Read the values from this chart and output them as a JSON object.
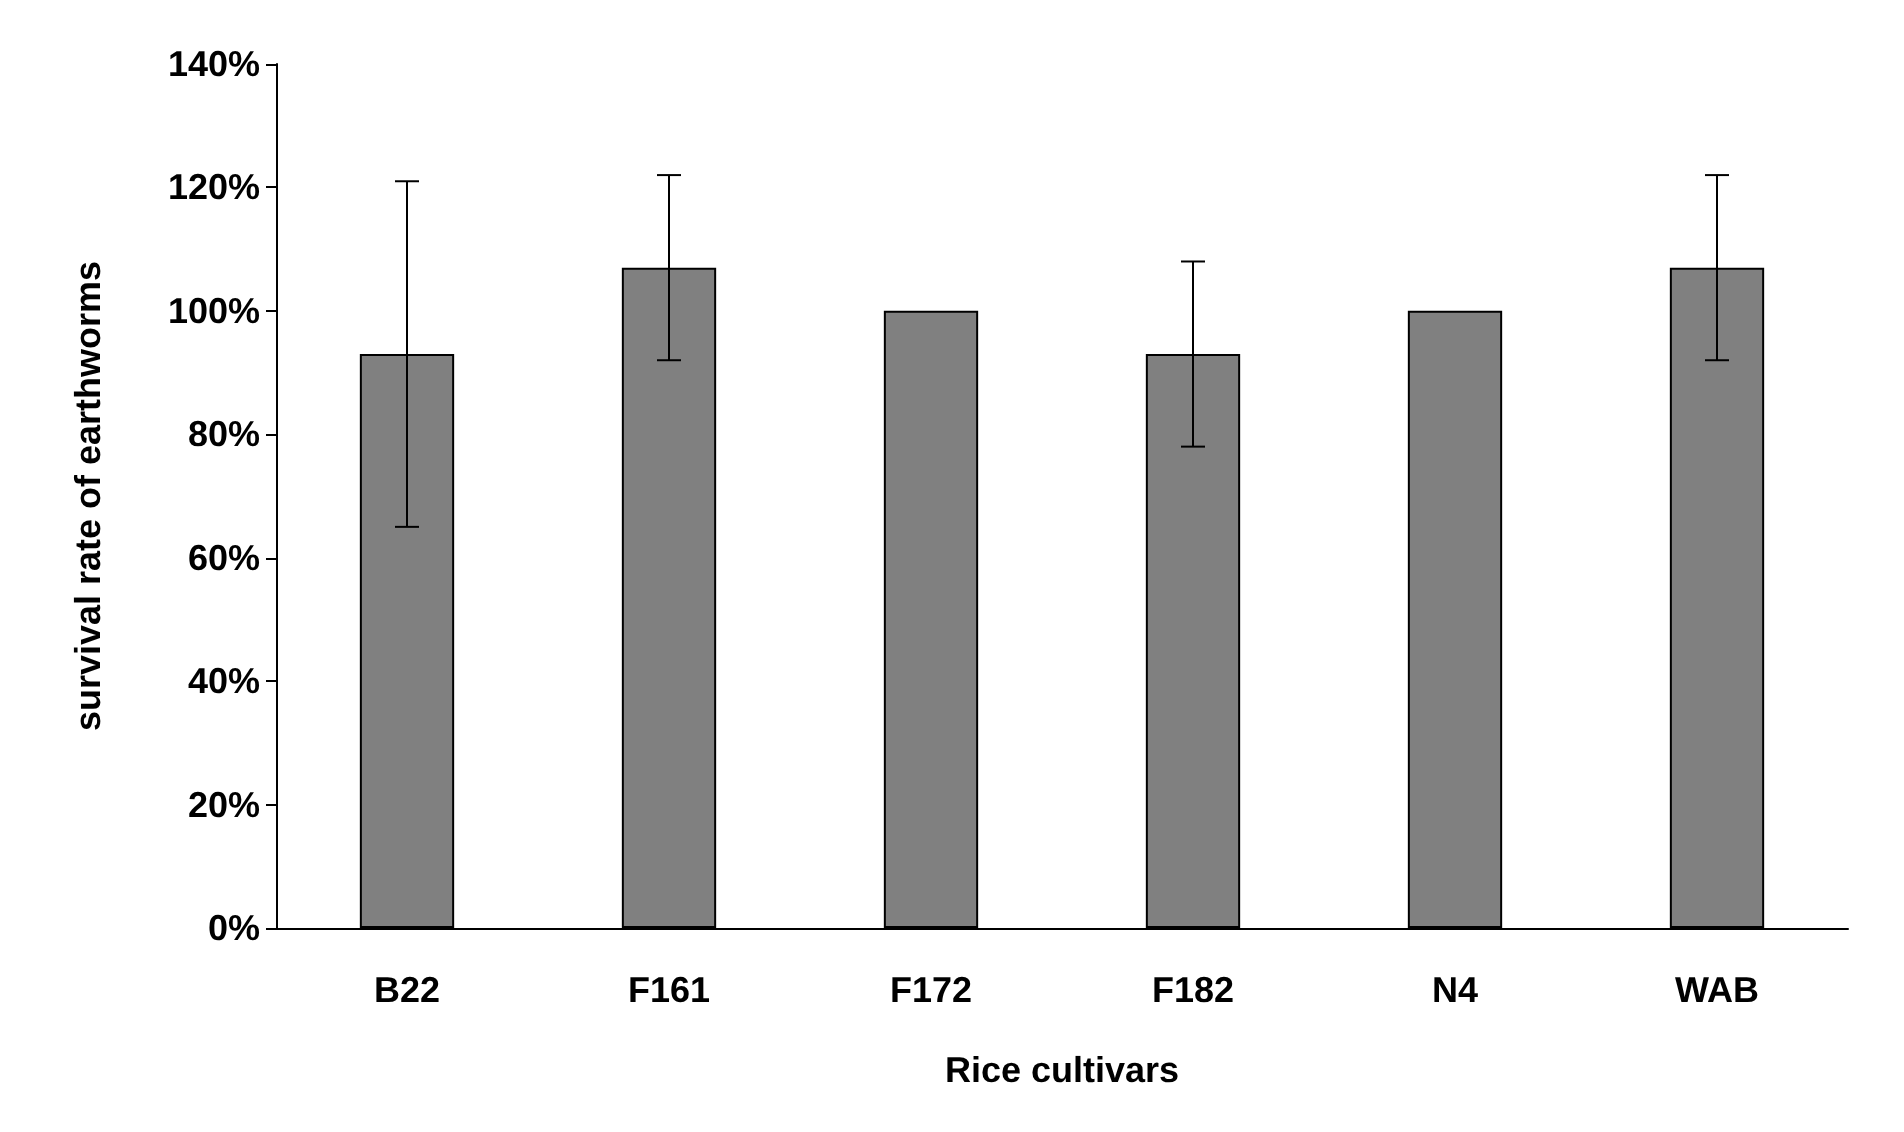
{
  "chart_data": {
    "type": "bar",
    "xlabel": "Rice cultivars",
    "ylabel": "survival rate of earthworms",
    "categories": [
      "B22",
      "F161",
      "F172",
      "F182",
      "N4",
      "WAB"
    ],
    "values": [
      93,
      107,
      100,
      93,
      100,
      107
    ],
    "errors": [
      28,
      15,
      null,
      15,
      null,
      15
    ],
    "color": "#808080",
    "ylim": [
      0,
      140
    ],
    "yticks": [
      {
        "value": 0,
        "label": "0%"
      },
      {
        "value": 20,
        "label": "20%"
      },
      {
        "value": 40,
        "label": "40%"
      },
      {
        "value": 60,
        "label": "60%"
      },
      {
        "value": 80,
        "label": "80%"
      },
      {
        "value": 100,
        "label": "100%"
      },
      {
        "value": 120,
        "label": "120%"
      },
      {
        "value": 140,
        "label": "140%"
      }
    ],
    "grid": false
  }
}
